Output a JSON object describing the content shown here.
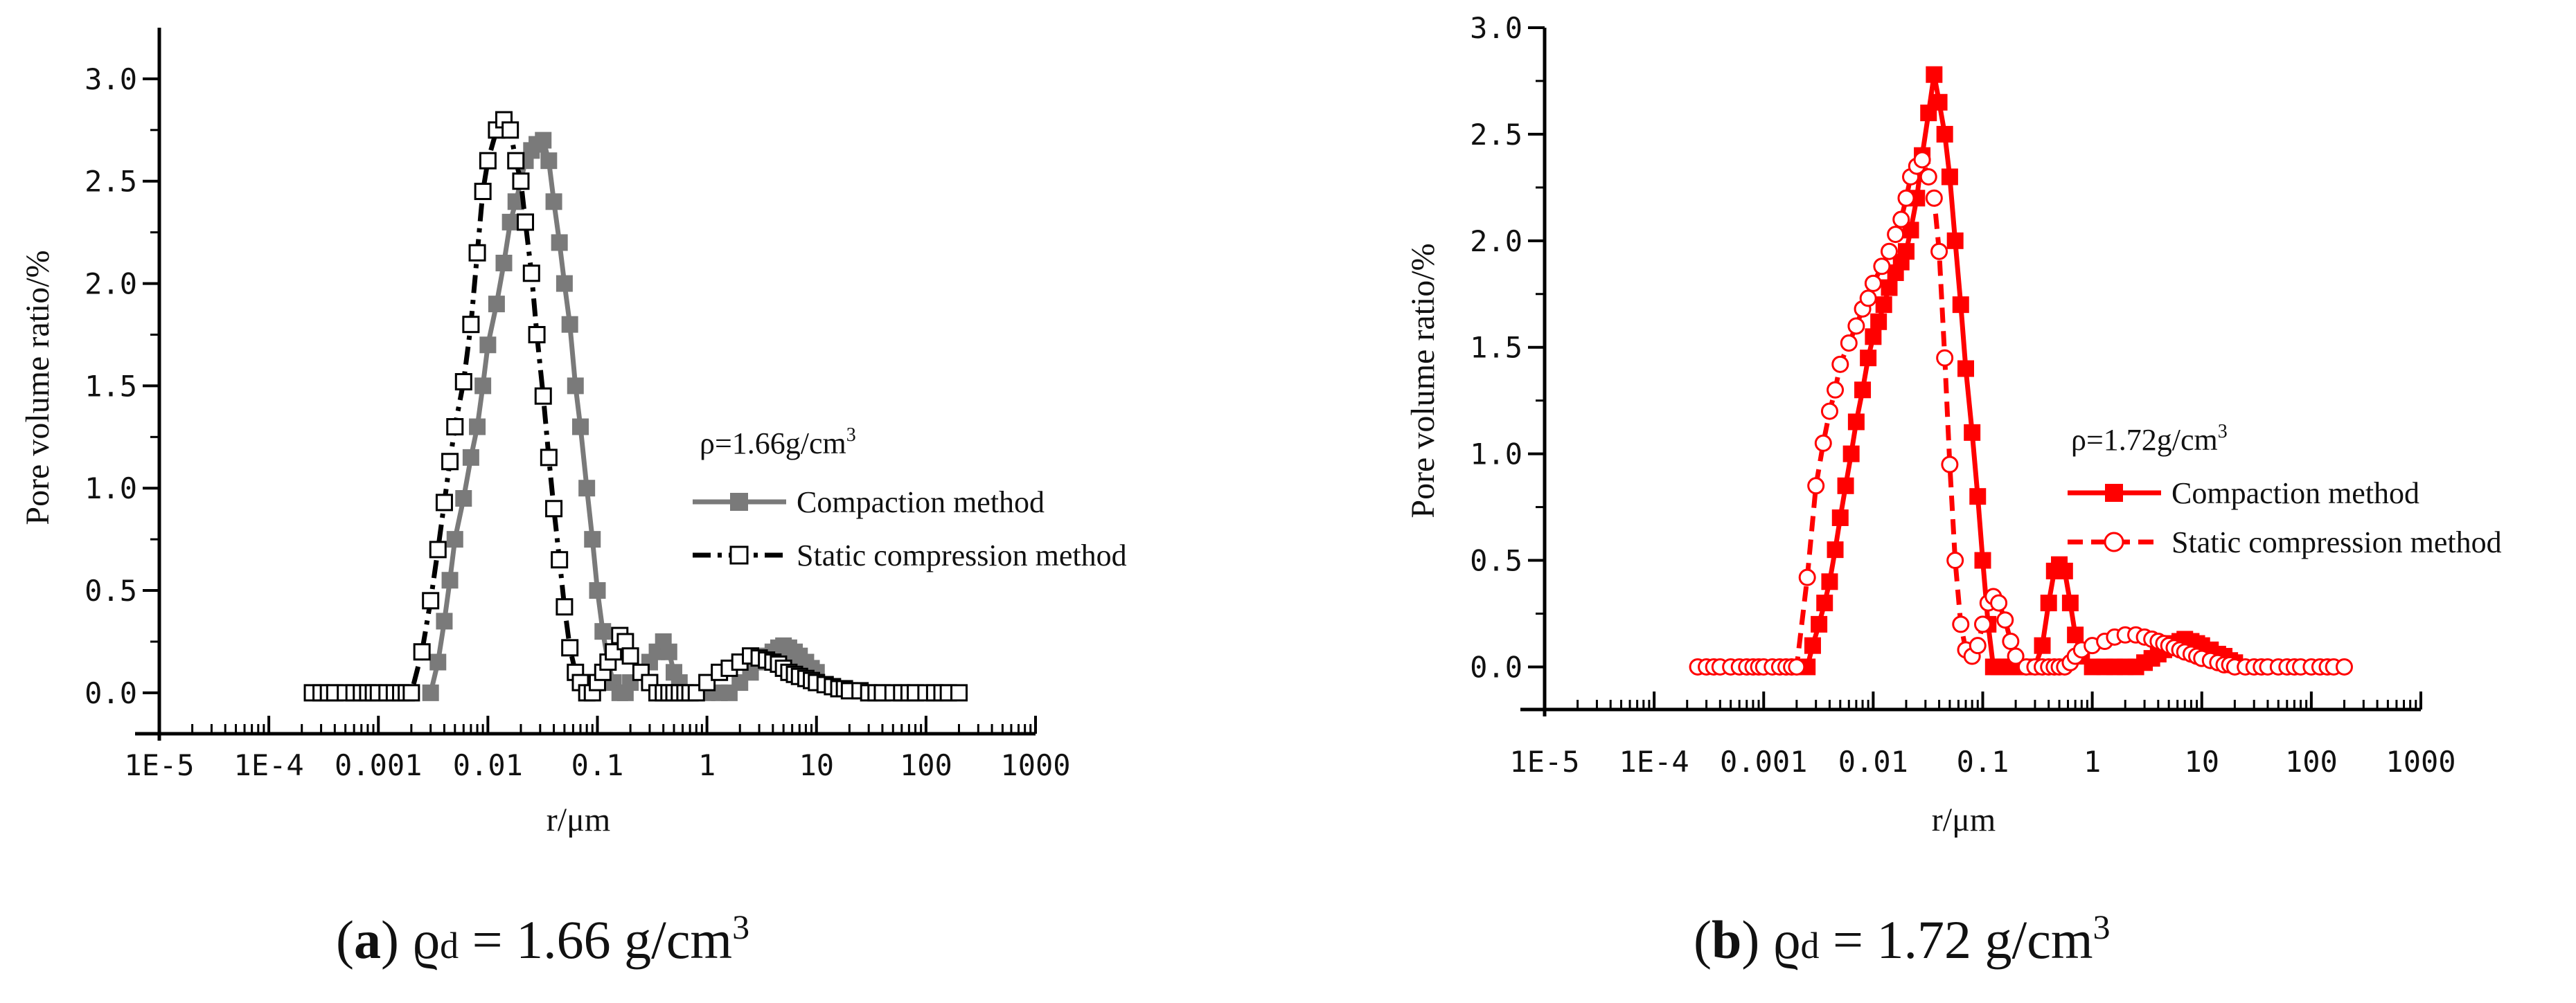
{
  "chart_data": [
    {
      "type": "line",
      "panel": "a",
      "xscale": "log",
      "xlabel": "r/μm",
      "ylabel": "Pore volume ratio/%",
      "xlim": [
        1e-05,
        1000
      ],
      "ylim": [
        -0.2,
        3.25
      ],
      "x_tick_labels": [
        "1E-5",
        "1E-4",
        "0.001",
        "0.01",
        "0.1",
        "1",
        "10",
        "100",
        "1000"
      ],
      "y_tick_labels": [
        "0.0",
        "0.5",
        "1.0",
        "1.5",
        "2.0",
        "2.5",
        "3.0"
      ],
      "legend_title": "ρ=1.66g/cm",
      "legend_title_sup": "3",
      "legend_position": "right",
      "series": [
        {
          "name": "Compaction method",
          "color": "#7a7a7a",
          "marker": "filled-square",
          "line": "solid",
          "x": [
            0.003,
            0.0035,
            0.004,
            0.0045,
            0.005,
            0.006,
            0.007,
            0.008,
            0.009,
            0.01,
            0.012,
            0.014,
            0.016,
            0.018,
            0.02,
            0.022,
            0.025,
            0.028,
            0.032,
            0.036,
            0.04,
            0.045,
            0.05,
            0.056,
            0.063,
            0.07,
            0.08,
            0.09,
            0.1,
            0.112,
            0.125,
            0.14,
            0.16,
            0.18,
            0.2,
            0.25,
            0.3,
            0.35,
            0.4,
            0.45,
            0.5,
            0.56,
            0.63,
            0.7,
            0.8,
            1.0,
            1.3,
            1.6,
            2.0,
            2.5,
            3.0,
            3.5,
            4.0,
            4.5,
            5.0,
            5.6,
            6.3,
            7.0,
            8.0,
            9.0,
            10.0
          ],
          "values": [
            0.0,
            0.15,
            0.35,
            0.55,
            0.75,
            0.95,
            1.15,
            1.3,
            1.5,
            1.7,
            1.9,
            2.1,
            2.3,
            2.4,
            2.5,
            2.6,
            2.65,
            2.68,
            2.7,
            2.6,
            2.4,
            2.2,
            2.0,
            1.8,
            1.5,
            1.3,
            1.0,
            0.75,
            0.5,
            0.3,
            0.15,
            0.05,
            0.0,
            0.0,
            0.05,
            0.1,
            0.15,
            0.2,
            0.25,
            0.2,
            0.1,
            0.05,
            0.0,
            0.0,
            0.0,
            0.0,
            0.0,
            0.0,
            0.05,
            0.1,
            0.15,
            0.18,
            0.2,
            0.22,
            0.23,
            0.22,
            0.2,
            0.18,
            0.15,
            0.12,
            0.1
          ]
        },
        {
          "name": "Static compression method",
          "color": "#000000",
          "marker": "open-square",
          "line": "dash-dot",
          "x": [
            0.00025,
            0.0003,
            0.00035,
            0.0004,
            0.0005,
            0.0006,
            0.0007,
            0.0008,
            0.0009,
            0.001,
            0.0012,
            0.0014,
            0.0016,
            0.0018,
            0.002,
            0.0025,
            0.003,
            0.0035,
            0.004,
            0.0045,
            0.005,
            0.006,
            0.007,
            0.008,
            0.009,
            0.01,
            0.012,
            0.014,
            0.016,
            0.018,
            0.02,
            0.022,
            0.025,
            0.028,
            0.032,
            0.036,
            0.04,
            0.045,
            0.05,
            0.056,
            0.063,
            0.07,
            0.08,
            0.09,
            0.1,
            0.112,
            0.125,
            0.14,
            0.16,
            0.18,
            0.2,
            0.25,
            0.3,
            0.35,
            0.4,
            0.45,
            0.5,
            0.56,
            0.63,
            0.7,
            0.8,
            1.0,
            1.3,
            1.6,
            2.0,
            2.5,
            3.0,
            3.5,
            4.0,
            4.5,
            5.0,
            5.6,
            6.3,
            7.0,
            8.0,
            9.0,
            10.0,
            12.0,
            14.0,
            16.0,
            18.0,
            20.0,
            25.0,
            30.0,
            35.0,
            40.0,
            50.0,
            60.0,
            70.0,
            80.0,
            100.0,
            120.0,
            140.0,
            160.0,
            200.0
          ],
          "values": [
            0.0,
            0.0,
            0.0,
            0.0,
            0.0,
            0.0,
            0.0,
            0.0,
            0.0,
            0.0,
            0.0,
            0.0,
            0.0,
            0.0,
            0.0,
            0.2,
            0.45,
            0.7,
            0.93,
            1.13,
            1.3,
            1.52,
            1.8,
            2.15,
            2.45,
            2.6,
            2.75,
            2.8,
            2.75,
            2.6,
            2.5,
            2.3,
            2.05,
            1.75,
            1.45,
            1.15,
            0.9,
            0.65,
            0.42,
            0.22,
            0.1,
            0.05,
            0.0,
            0.0,
            0.05,
            0.1,
            0.15,
            0.2,
            0.28,
            0.25,
            0.18,
            0.1,
            0.05,
            0.0,
            0.0,
            0.0,
            0.0,
            0.0,
            0.0,
            0.0,
            0.0,
            0.05,
            0.1,
            0.12,
            0.15,
            0.18,
            0.17,
            0.16,
            0.15,
            0.14,
            0.12,
            0.1,
            0.09,
            0.08,
            0.07,
            0.06,
            0.05,
            0.04,
            0.03,
            0.02,
            0.02,
            0.01,
            0.01,
            0.0,
            0.0,
            0.0,
            0.0,
            0.0,
            0.0,
            0.0,
            0.0,
            0.0,
            0.0,
            0.0,
            0.0
          ]
        }
      ]
    },
    {
      "type": "line",
      "panel": "b",
      "xscale": "log",
      "xlabel": "r/μm",
      "ylabel": "Pore volume ratio/%",
      "xlim": [
        1e-05,
        1000
      ],
      "ylim": [
        -0.2,
        3.0
      ],
      "x_tick_labels": [
        "1E-5",
        "1E-4",
        "0.001",
        "0.01",
        "0.1",
        "1",
        "10",
        "100",
        "1000"
      ],
      "y_tick_labels": [
        "0.0",
        "0.5",
        "1.0",
        "1.5",
        "2.0",
        "2.5",
        "3.0"
      ],
      "legend_title": "ρ=1.72g/cm",
      "legend_title_sup": "3",
      "legend_position": "right",
      "series": [
        {
          "name": "Compaction method",
          "color": "#ff0000",
          "marker": "filled-square",
          "line": "solid",
          "x": [
            0.0025,
            0.0028,
            0.0032,
            0.0036,
            0.004,
            0.0045,
            0.005,
            0.0056,
            0.0063,
            0.007,
            0.008,
            0.009,
            0.01,
            0.0112,
            0.0125,
            0.014,
            0.016,
            0.018,
            0.02,
            0.022,
            0.025,
            0.028,
            0.032,
            0.036,
            0.04,
            0.045,
            0.05,
            0.056,
            0.063,
            0.07,
            0.08,
            0.09,
            0.1,
            0.112,
            0.125,
            0.14,
            0.16,
            0.18,
            0.2,
            0.25,
            0.3,
            0.35,
            0.4,
            0.45,
            0.5,
            0.56,
            0.63,
            0.7,
            0.8,
            1.0,
            1.3,
            1.6,
            2.0,
            2.5,
            3.0,
            3.5,
            4.0,
            4.5,
            5.0,
            5.6,
            6.3,
            7.0,
            8.0,
            9.0,
            10.0,
            12.0,
            14.0,
            16.0,
            18.0,
            20.0
          ],
          "values": [
            0.0,
            0.1,
            0.2,
            0.3,
            0.4,
            0.55,
            0.7,
            0.85,
            1.0,
            1.15,
            1.3,
            1.45,
            1.55,
            1.62,
            1.7,
            1.78,
            1.85,
            1.9,
            1.95,
            2.05,
            2.2,
            2.4,
            2.6,
            2.78,
            2.65,
            2.5,
            2.3,
            2.0,
            1.7,
            1.4,
            1.1,
            0.8,
            0.5,
            0.2,
            0.0,
            0.0,
            0.0,
            0.0,
            0.0,
            0.0,
            0.0,
            0.1,
            0.3,
            0.45,
            0.48,
            0.45,
            0.3,
            0.15,
            0.05,
            0.0,
            0.0,
            0.0,
            0.0,
            0.0,
            0.02,
            0.04,
            0.06,
            0.08,
            0.1,
            0.11,
            0.12,
            0.13,
            0.12,
            0.11,
            0.1,
            0.08,
            0.06,
            0.05,
            0.03,
            0.02
          ]
        },
        {
          "name": "Static compression method",
          "color": "#ff0000",
          "marker": "open-circle",
          "line": "dash",
          "x": [
            0.00025,
            0.0003,
            0.00035,
            0.0004,
            0.0005,
            0.0006,
            0.0007,
            0.0008,
            0.0009,
            0.001,
            0.0012,
            0.0014,
            0.0016,
            0.0018,
            0.002,
            0.0025,
            0.003,
            0.0035,
            0.004,
            0.0045,
            0.005,
            0.006,
            0.007,
            0.008,
            0.009,
            0.01,
            0.012,
            0.014,
            0.016,
            0.018,
            0.02,
            0.022,
            0.025,
            0.028,
            0.032,
            0.036,
            0.04,
            0.045,
            0.05,
            0.056,
            0.063,
            0.07,
            0.08,
            0.09,
            0.1,
            0.112,
            0.125,
            0.14,
            0.16,
            0.18,
            0.2,
            0.25,
            0.3,
            0.35,
            0.4,
            0.45,
            0.5,
            0.56,
            0.63,
            0.7,
            0.8,
            1.0,
            1.3,
            1.6,
            2.0,
            2.5,
            3.0,
            3.5,
            4.0,
            4.5,
            5.0,
            5.6,
            6.3,
            7.0,
            8.0,
            9.0,
            10.0,
            12.0,
            14.0,
            16.0,
            18.0,
            20.0,
            25.0,
            30.0,
            35.0,
            40.0,
            50.0,
            60.0,
            70.0,
            80.0,
            100.0,
            120.0,
            140.0,
            160.0,
            200.0
          ],
          "values": [
            0.0,
            0.0,
            0.0,
            0.0,
            0.0,
            0.0,
            0.0,
            0.0,
            0.0,
            0.0,
            0.0,
            0.0,
            0.0,
            0.0,
            0.0,
            0.42,
            0.85,
            1.05,
            1.2,
            1.3,
            1.42,
            1.52,
            1.6,
            1.68,
            1.73,
            1.8,
            1.88,
            1.95,
            2.03,
            2.1,
            2.2,
            2.3,
            2.35,
            2.38,
            2.3,
            2.2,
            1.95,
            1.45,
            0.95,
            0.5,
            0.2,
            0.08,
            0.05,
            0.1,
            0.2,
            0.3,
            0.33,
            0.3,
            0.22,
            0.12,
            0.05,
            0.0,
            0.0,
            0.0,
            0.0,
            0.0,
            0.0,
            0.0,
            0.02,
            0.05,
            0.08,
            0.1,
            0.12,
            0.14,
            0.15,
            0.15,
            0.14,
            0.13,
            0.12,
            0.11,
            0.1,
            0.09,
            0.08,
            0.07,
            0.06,
            0.05,
            0.04,
            0.03,
            0.02,
            0.01,
            0.01,
            0.0,
            0.0,
            0.0,
            0.0,
            0.0,
            0.0,
            0.0,
            0.0,
            0.0,
            0.0,
            0.0,
            0.0,
            0.0,
            0.0
          ]
        }
      ]
    }
  ],
  "captions": [
    {
      "letter": "a",
      "symbol": "ϱ",
      "sub": "d",
      "text": " = 1.66 g/cm",
      "sup": "3"
    },
    {
      "letter": "b",
      "symbol": "ϱ",
      "sub": "d",
      "text": " = 1.72 g/cm",
      "sup": "3"
    }
  ]
}
